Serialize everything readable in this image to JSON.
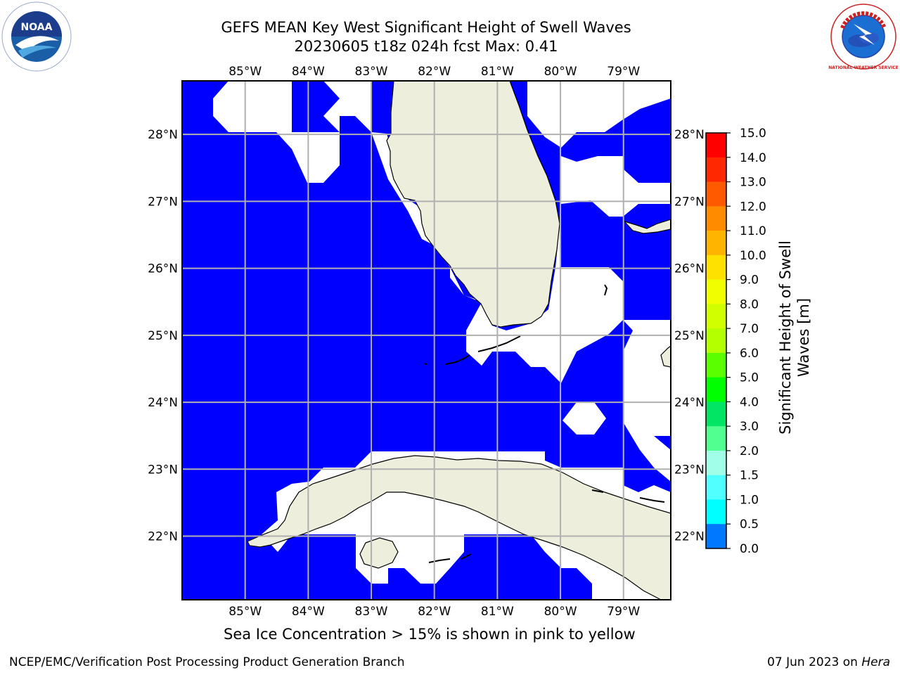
{
  "title": {
    "line1": "GEFS MEAN Key West Significant Height of Swell Waves",
    "line2": "20230605 t18z 024h fcst   Max: 0.41"
  },
  "map": {
    "lon_ticks": [
      "85°W",
      "84°W",
      "83°W",
      "82°W",
      "81°W",
      "80°W",
      "79°W"
    ],
    "lat_ticks": [
      "28°N",
      "27°N",
      "26°N",
      "25°N",
      "24°N",
      "23°N",
      "22°N"
    ],
    "extent": {
      "lon": [
        -86.0,
        -78.25
      ],
      "lat": [
        21.05,
        28.8
      ]
    },
    "ocean_color": "#0000ff",
    "land_color": "#eeeedd",
    "gridlines": true
  },
  "colorbar": {
    "tick_labels": [
      "15.0",
      "14.0",
      "13.0",
      "12.0",
      "11.0",
      "10.0",
      "9.0",
      "8.0",
      "7.0",
      "6.0",
      "5.0",
      "4.0",
      "3.0",
      "2.0",
      "1.5",
      "1.0",
      "0.5",
      "0.0"
    ],
    "bins": [
      {
        "range": "14.0-15.0",
        "color": "#ff0000"
      },
      {
        "range": "13.0-14.0",
        "color": "#ff2800"
      },
      {
        "range": "12.0-13.0",
        "color": "#ff5a00"
      },
      {
        "range": "11.0-12.0",
        "color": "#ff8c00"
      },
      {
        "range": "10.0-11.0",
        "color": "#ffb400"
      },
      {
        "range": "9.0-10.0",
        "color": "#ffe100"
      },
      {
        "range": "8.0-9.0",
        "color": "#f0ff00"
      },
      {
        "range": "7.0-8.0",
        "color": "#d2ff00"
      },
      {
        "range": "6.0-7.0",
        "color": "#b4ff00"
      },
      {
        "range": "5.0-6.0",
        "color": "#5aff00"
      },
      {
        "range": "4.0-5.0",
        "color": "#00ff00"
      },
      {
        "range": "3.0-4.0",
        "color": "#00e664"
      },
      {
        "range": "2.0-3.0",
        "color": "#50ff90"
      },
      {
        "range": "1.5-2.0",
        "color": "#a0ffe6"
      },
      {
        "range": "1.0-1.5",
        "color": "#50ffff"
      },
      {
        "range": "0.5-1.0",
        "color": "#00ffff"
      },
      {
        "range": "0.0-0.5",
        "color": "#0078ff"
      },
      {
        "range": "0.0",
        "color": "#0000ff"
      }
    ],
    "label": "Significant Height of Swell Waves [m]"
  },
  "caption": "Sea Ice Concentration > 15% is shown in pink to yellow",
  "footer": {
    "left": "NCEP/EMC/Verification Post Processing Product Generation Branch",
    "right_prefix": "07 Jun 2023 on ",
    "right_host": "Hera"
  },
  "logos": {
    "left": "NOAA",
    "right": "NATIONAL WEATHER SERVICE"
  }
}
